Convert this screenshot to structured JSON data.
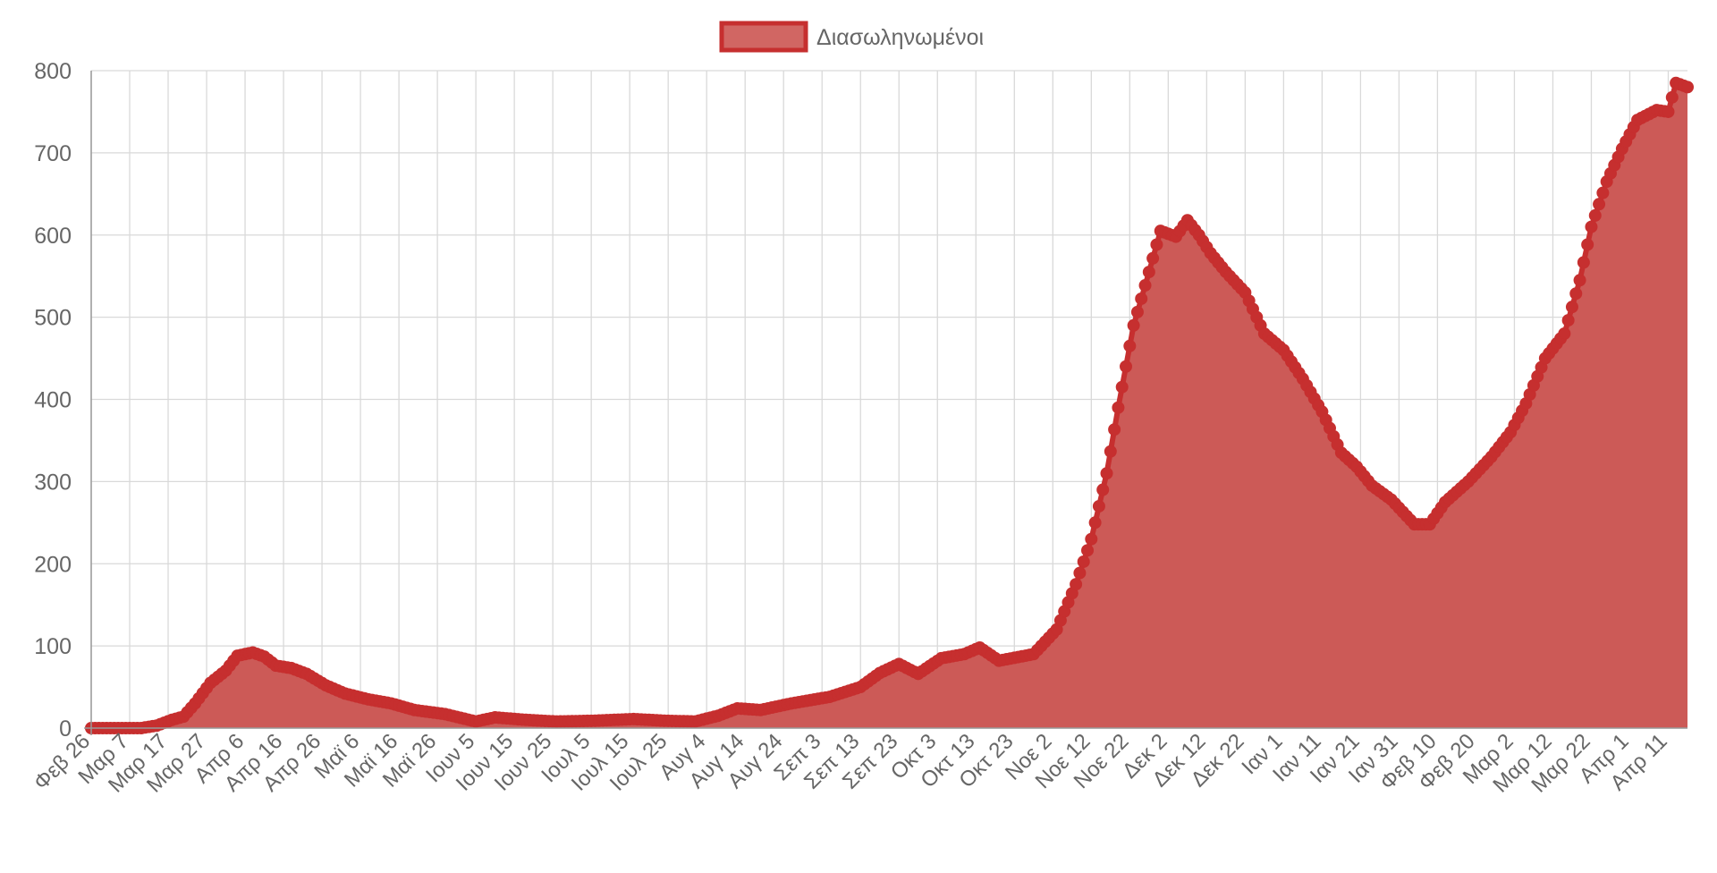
{
  "colors": {
    "series_line": "#c62f2f",
    "series_fill": "#cc5a57",
    "legend_fill": "#d16663",
    "grid": "#d9d9d9",
    "axis": "#999999",
    "text": "#666666"
  },
  "legend": {
    "label": "Διασωληνωμένοι",
    "position": "top"
  },
  "chart_data": {
    "type": "area",
    "title": "",
    "xlabel": "",
    "ylabel": "",
    "ylim": [
      0,
      800
    ],
    "yticks": [
      0,
      100,
      200,
      300,
      400,
      500,
      600,
      700,
      800
    ],
    "grid": true,
    "x_start_date": "2020-02-26",
    "x_tick_labels": [
      "Φεβ 26",
      "Μαρ 7",
      "Μαρ 17",
      "Μαρ 27",
      "Απρ 6",
      "Απρ 16",
      "Απρ 26",
      "Μαϊ 6",
      "Μαϊ 16",
      "Μαϊ 26",
      "Ιουν 5",
      "Ιουν 15",
      "Ιουν 25",
      "Ιουλ 5",
      "Ιουλ 15",
      "Ιουλ 25",
      "Αυγ 4",
      "Αυγ 14",
      "Αυγ 24",
      "Σεπ 3",
      "Σεπ 13",
      "Σεπ 23",
      "Οκτ 3",
      "Οκτ 13",
      "Οκτ 23",
      "Νοε 2",
      "Νοε 12",
      "Νοε 22",
      "Δεκ 2",
      "Δεκ 12",
      "Δεκ 22",
      "Ιαν 1",
      "Ιαν 11",
      "Ιαν 21",
      "Ιαν 31",
      "Φεβ 10",
      "Φεβ 20",
      "Μαρ 2",
      "Μαρ 12",
      "Μαρ 22",
      "Απρ 1",
      "Απρ 11"
    ],
    "series": [
      {
        "name": "Διασωληνωμένοι",
        "anchors": [
          [
            "2020-02-26",
            0
          ],
          [
            "2020-03-10",
            0
          ],
          [
            "2020-03-14",
            3
          ],
          [
            "2020-03-18",
            10
          ],
          [
            "2020-03-21",
            14
          ],
          [
            "2020-03-24",
            30
          ],
          [
            "2020-03-28",
            55
          ],
          [
            "2020-04-01",
            70
          ],
          [
            "2020-04-04",
            88
          ],
          [
            "2020-04-08",
            92
          ],
          [
            "2020-04-11",
            87
          ],
          [
            "2020-04-14",
            76
          ],
          [
            "2020-04-18",
            73
          ],
          [
            "2020-04-22",
            66
          ],
          [
            "2020-04-27",
            52
          ],
          [
            "2020-05-02",
            42
          ],
          [
            "2020-05-08",
            35
          ],
          [
            "2020-05-14",
            30
          ],
          [
            "2020-05-20",
            22
          ],
          [
            "2020-05-28",
            17
          ],
          [
            "2020-06-05",
            8
          ],
          [
            "2020-06-10",
            13
          ],
          [
            "2020-06-18",
            10
          ],
          [
            "2020-06-26",
            8
          ],
          [
            "2020-07-06",
            9
          ],
          [
            "2020-07-16",
            11
          ],
          [
            "2020-07-24",
            9
          ],
          [
            "2020-08-01",
            8
          ],
          [
            "2020-08-07",
            15
          ],
          [
            "2020-08-12",
            24
          ],
          [
            "2020-08-18",
            22
          ],
          [
            "2020-08-26",
            30
          ],
          [
            "2020-09-05",
            38
          ],
          [
            "2020-09-13",
            50
          ],
          [
            "2020-09-18",
            67
          ],
          [
            "2020-09-23",
            78
          ],
          [
            "2020-09-28",
            66
          ],
          [
            "2020-10-04",
            85
          ],
          [
            "2020-10-10",
            90
          ],
          [
            "2020-10-14",
            98
          ],
          [
            "2020-10-19",
            82
          ],
          [
            "2020-10-28",
            90
          ],
          [
            "2020-11-03",
            120
          ],
          [
            "2020-11-08",
            175
          ],
          [
            "2020-11-12",
            230
          ],
          [
            "2020-11-16",
            310
          ],
          [
            "2020-11-19",
            390
          ],
          [
            "2020-11-23",
            490
          ],
          [
            "2020-11-27",
            555
          ],
          [
            "2020-11-30",
            605
          ],
          [
            "2020-12-04",
            598
          ],
          [
            "2020-12-07",
            618
          ],
          [
            "2020-12-10",
            600
          ],
          [
            "2020-12-13",
            578
          ],
          [
            "2020-12-17",
            555
          ],
          [
            "2020-12-22",
            530
          ],
          [
            "2020-12-27",
            480
          ],
          [
            "2021-01-01",
            460
          ],
          [
            "2021-01-06",
            425
          ],
          [
            "2021-01-11",
            385
          ],
          [
            "2021-01-16",
            335
          ],
          [
            "2021-01-20",
            318
          ],
          [
            "2021-01-24",
            295
          ],
          [
            "2021-01-29",
            278
          ],
          [
            "2021-02-04",
            248
          ],
          [
            "2021-02-08",
            248
          ],
          [
            "2021-02-12",
            275
          ],
          [
            "2021-02-18",
            300
          ],
          [
            "2021-02-24",
            330
          ],
          [
            "2021-03-01",
            360
          ],
          [
            "2021-03-05",
            395
          ],
          [
            "2021-03-10",
            450
          ],
          [
            "2021-03-15",
            480
          ],
          [
            "2021-03-19",
            545
          ],
          [
            "2021-03-22",
            610
          ],
          [
            "2021-03-26",
            665
          ],
          [
            "2021-03-30",
            705
          ],
          [
            "2021-04-03",
            740
          ],
          [
            "2021-04-08",
            752
          ],
          [
            "2021-04-11",
            750
          ],
          [
            "2021-04-13",
            785
          ],
          [
            "2021-04-16",
            780
          ]
        ]
      }
    ]
  }
}
